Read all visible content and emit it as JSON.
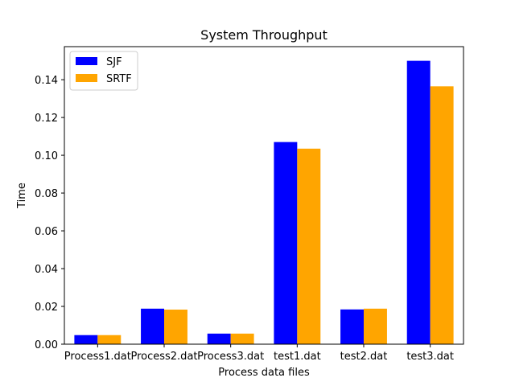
{
  "chart_data": {
    "type": "bar",
    "title": "System Throughput",
    "xlabel": "Process data files",
    "ylabel": "Time",
    "categories": [
      "Process1.dat",
      "Process2.dat",
      "Process3.dat",
      "test1.dat",
      "test2.dat",
      "test3.dat"
    ],
    "series": [
      {
        "name": "SJF",
        "color": "#0000ff",
        "values": [
          0.0048,
          0.0188,
          0.0056,
          0.107,
          0.0184,
          0.15
        ]
      },
      {
        "name": "SRTF",
        "color": "#ffa500",
        "values": [
          0.0048,
          0.0183,
          0.0056,
          0.1035,
          0.0188,
          0.1365
        ]
      }
    ],
    "ylim": [
      0,
      0.1575
    ],
    "yticks": [
      0.0,
      0.02,
      0.04,
      0.06,
      0.08,
      0.1,
      0.12,
      0.14
    ],
    "ytick_labels": [
      "0.00",
      "0.02",
      "0.04",
      "0.06",
      "0.08",
      "0.10",
      "0.12",
      "0.14"
    ],
    "grid": false,
    "legend_position": "top-left"
  }
}
